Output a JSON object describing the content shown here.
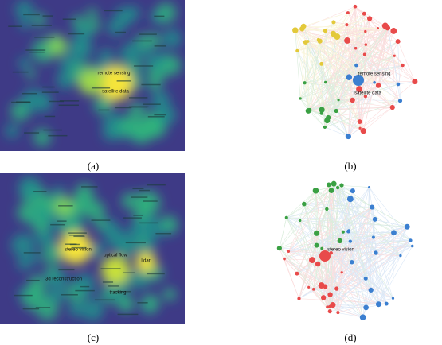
{
  "panels": [
    {
      "caption": "(a)",
      "labels": [
        "remote sensing",
        "satellite data"
      ]
    },
    {
      "caption": "(b)",
      "labels": [
        "remote sensing",
        "satellite data"
      ]
    },
    {
      "caption": "(c)",
      "labels": [
        "stereo vision",
        "3d reconstruction",
        "optical flow",
        "tracking",
        "lidar"
      ]
    },
    {
      "caption": "(d)",
      "labels": [
        "stereo vision"
      ]
    }
  ]
}
